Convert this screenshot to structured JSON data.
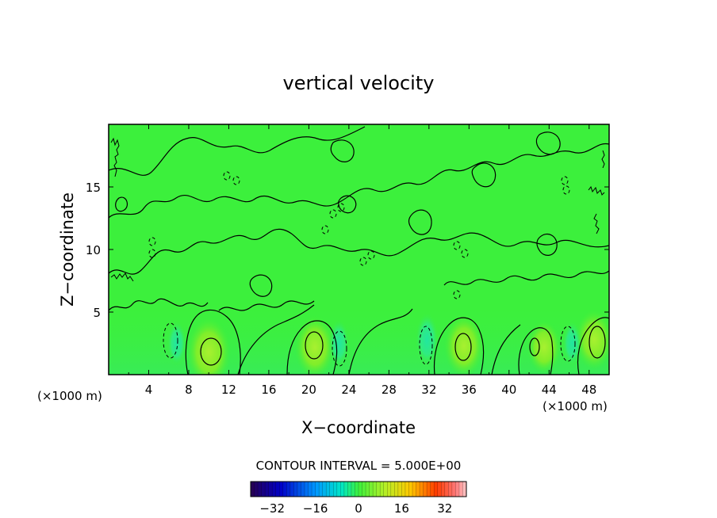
{
  "chart_data": {
    "type": "heatmap",
    "title": "vertical velocity",
    "xlabel": "X−coordinate",
    "ylabel": "Z−coordinate",
    "x_unit_left": "(×1000 m)",
    "x_unit_right": "(×1000 m)",
    "x_ticks": [
      {
        "value": 4,
        "label": "4"
      },
      {
        "value": 8,
        "label": "8"
      },
      {
        "value": 12,
        "label": "12"
      },
      {
        "value": 16,
        "label": "16"
      },
      {
        "value": 20,
        "label": "20"
      },
      {
        "value": 24,
        "label": "24"
      },
      {
        "value": 28,
        "label": "28"
      },
      {
        "value": 32,
        "label": "32"
      },
      {
        "value": 36,
        "label": "36"
      },
      {
        "value": 40,
        "label": "40"
      },
      {
        "value": 44,
        "label": "44"
      },
      {
        "value": 48,
        "label": "48"
      }
    ],
    "y_ticks": [
      {
        "value": 5,
        "label": "5"
      },
      {
        "value": 10,
        "label": "10"
      },
      {
        "value": 15,
        "label": "15"
      }
    ],
    "xlim": [
      0,
      50
    ],
    "ylim": [
      0,
      20
    ],
    "contour_interval_text": "CONTOUR INTERVAL =  5.000E+00",
    "colorbar": {
      "range": [
        -40,
        40
      ],
      "ticks": [
        {
          "value": -32,
          "label": "−32"
        },
        {
          "value": -16,
          "label": "−16"
        },
        {
          "value": 0,
          "label": "0"
        },
        {
          "value": 16,
          "label": "16"
        },
        {
          "value": 32,
          "label": "32"
        }
      ]
    },
    "updraft_cores": [
      {
        "x": 10,
        "z": 1.8,
        "w": 12
      },
      {
        "x": 20.6,
        "z": 2.2,
        "w": 10
      },
      {
        "x": 35.5,
        "z": 2.3,
        "w": 10
      },
      {
        "x": 43.5,
        "z": 2.2,
        "w": 7
      },
      {
        "x": 48.5,
        "z": 2.8,
        "w": 9
      }
    ],
    "downdraft_cores": [
      {
        "x": 6.8,
        "z": 2.5,
        "w": -6
      },
      {
        "x": 23,
        "z": 2.5,
        "w": -7
      },
      {
        "x": 31.8,
        "z": 2.8,
        "w": -9
      },
      {
        "x": 46.3,
        "z": 2.5,
        "w": -6
      }
    ]
  }
}
